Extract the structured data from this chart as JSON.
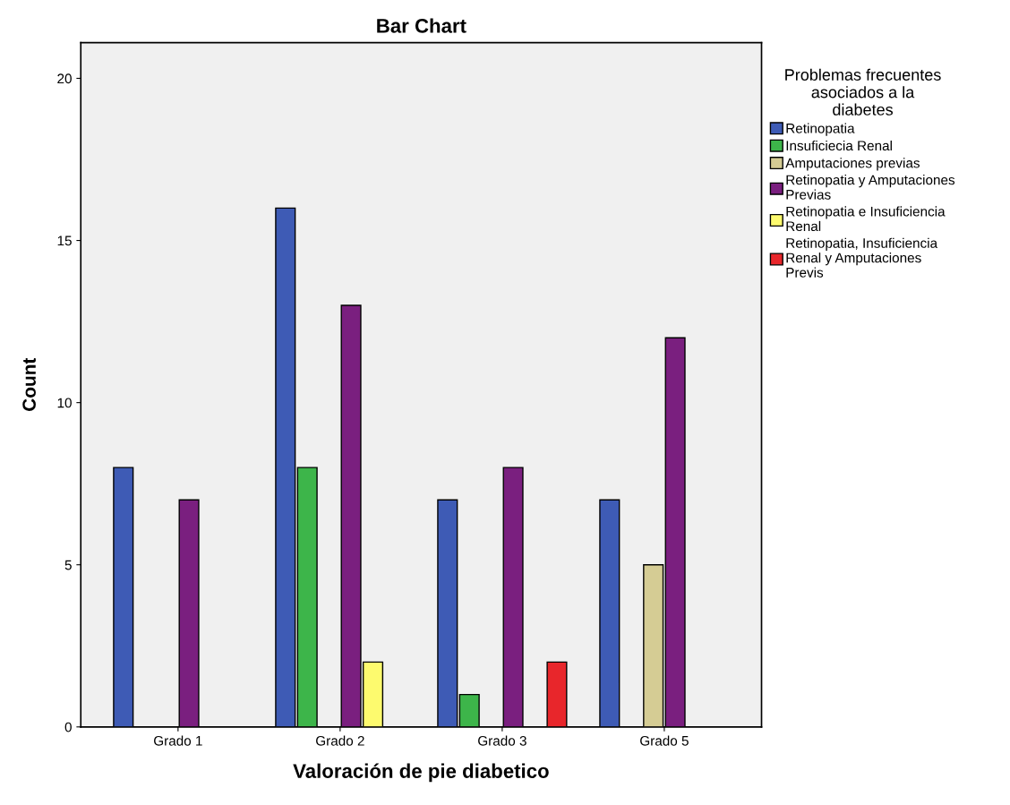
{
  "chart_data": {
    "type": "bar",
    "title": "Bar Chart",
    "xlabel": "Valoración de pie diabetico",
    "ylabel": "Count",
    "legend_title": "Problemas frecuentes\nasociados a la\ndiabetes",
    "categories": [
      "Grado 1",
      "Grado 2",
      "Grado 3",
      "Grado 5"
    ],
    "series": [
      {
        "name": "Retinopatia",
        "color": "#3e5bb5",
        "values": [
          8,
          16,
          7,
          7
        ]
      },
      {
        "name": "Insuficiecia Renal",
        "color": "#3db54a",
        "values": [
          null,
          8,
          1,
          null
        ]
      },
      {
        "name": "Amputaciones previas",
        "color": "#d5cc94",
        "values": [
          null,
          null,
          null,
          5
        ]
      },
      {
        "name": "Retinopatia y Amputaciones\nPrevias",
        "color": "#7a1f7f",
        "values": [
          7,
          13,
          8,
          12
        ]
      },
      {
        "name": "Retinopatia e Insuficiencia\nRenal",
        "color": "#fdfa6e",
        "values": [
          null,
          2,
          null,
          null
        ]
      },
      {
        "name": "Retinopatia, Insuficiencia\nRenal y Amputaciones\nPrevis",
        "color": "#e8262b",
        "values": [
          null,
          null,
          2,
          null
        ]
      }
    ],
    "ylim": [
      0,
      21.1
    ],
    "yticks": [
      0,
      5,
      10,
      15,
      20
    ],
    "grid": false,
    "legend": "right"
  }
}
